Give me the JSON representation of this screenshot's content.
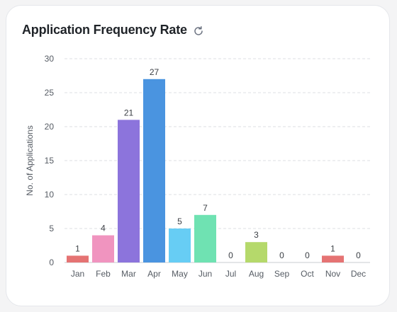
{
  "card": {
    "title": "Application Frequency Rate",
    "refresh_icon": "refresh-icon"
  },
  "chart_data": {
    "type": "bar",
    "title": "Application Frequency Rate",
    "xlabel": "",
    "ylabel": "No. of Applications",
    "categories": [
      "Jan",
      "Feb",
      "Mar",
      "Apr",
      "May",
      "Jun",
      "Jul",
      "Aug",
      "Sep",
      "Oct",
      "Nov",
      "Dec"
    ],
    "values": [
      1,
      4,
      21,
      27,
      5,
      7,
      0,
      3,
      0,
      0,
      1,
      0
    ],
    "colors": [
      "#e57373",
      "#f094bf",
      "#8c74dc",
      "#4a94e0",
      "#67cdf4",
      "#6fe2b2",
      "#9e9e9e",
      "#b5d96b",
      "#9e9e9e",
      "#9e9e9e",
      "#e57373",
      "#9e9e9e"
    ],
    "ylim": [
      0,
      30
    ],
    "yticks": [
      0,
      5,
      10,
      15,
      20,
      25,
      30
    ],
    "grid": true,
    "data_labels": true
  }
}
